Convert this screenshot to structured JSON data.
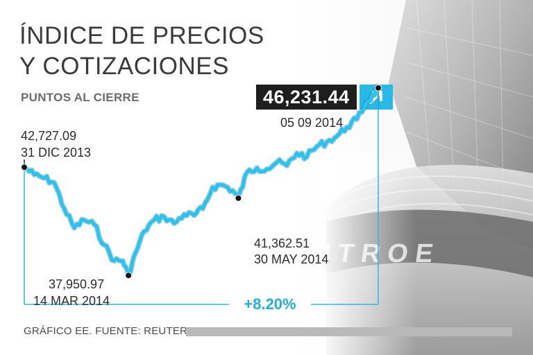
{
  "header": {
    "title_line1": "ÍNDICE DE PRECIOS",
    "title_line2": "Y COTIZACIONES",
    "subtitle": "PUNTOS AL CIERRE"
  },
  "callouts": {
    "last_value": "46,231.44",
    "last_date": "05 09 2014",
    "start_value": "42,727.09",
    "start_date": "31 DIC 2013",
    "min_value": "37,950.97",
    "min_date": "14 MAR 2014",
    "mid_value": "41,362.51",
    "mid_date": "30 MAY 2014",
    "change": "+8.20%"
  },
  "footer": {
    "source": "GRÁFICO EE. FUENTE: REUTERS."
  },
  "icons": {
    "trend": "arrow-up-right-icon"
  },
  "colors": {
    "line": "#28c3ee",
    "line_outline": "#1d6f8a",
    "accent": "#28b9e6",
    "dark_box": "#1e1e1e"
  },
  "chart_data": {
    "type": "line",
    "title": "ÍNDICE DE PRECIOS Y COTIZACIONES",
    "subtitle": "PUNTOS AL CIERRE",
    "xlabel": "",
    "ylabel": "",
    "grid": false,
    "ylim": [
      37500,
      46500
    ],
    "series": [
      {
        "points": [
          [
            "2013-12-31",
            42727.09
          ],
          [
            "2014-01-07",
            42400
          ],
          [
            "2014-01-14",
            42250
          ],
          [
            "2014-01-21",
            42050
          ],
          [
            "2014-01-28",
            40900
          ],
          [
            "2014-02-04",
            40050
          ],
          [
            "2014-02-11",
            40400
          ],
          [
            "2014-02-18",
            40200
          ],
          [
            "2014-02-25",
            39300
          ],
          [
            "2014-03-04",
            38600
          ],
          [
            "2014-03-10",
            38600
          ],
          [
            "2014-03-14",
            37950.97
          ],
          [
            "2014-03-19",
            38950
          ],
          [
            "2014-03-25",
            39900
          ],
          [
            "2014-04-01",
            40400
          ],
          [
            "2014-04-08",
            40550
          ],
          [
            "2014-04-15",
            40250
          ],
          [
            "2014-04-22",
            40650
          ],
          [
            "2014-04-29",
            40600
          ],
          [
            "2014-05-05",
            40900
          ],
          [
            "2014-05-12",
            41850
          ],
          [
            "2014-05-19",
            41950
          ],
          [
            "2014-05-26",
            41700
          ],
          [
            "2014-05-30",
            41362.51
          ],
          [
            "2014-06-05",
            42500
          ],
          [
            "2014-06-12",
            42700
          ],
          [
            "2014-06-19",
            42650
          ],
          [
            "2014-06-26",
            42950
          ],
          [
            "2014-07-03",
            42800
          ],
          [
            "2014-07-10",
            43350
          ],
          [
            "2014-07-17",
            43200
          ],
          [
            "2014-07-24",
            43650
          ],
          [
            "2014-07-31",
            43850
          ],
          [
            "2014-08-07",
            44100
          ],
          [
            "2014-08-14",
            44500
          ],
          [
            "2014-08-21",
            44850
          ],
          [
            "2014-08-28",
            45600
          ],
          [
            "2014-09-02",
            45950
          ],
          [
            "2014-09-05",
            46231.44
          ]
        ]
      }
    ],
    "annotations": [
      {
        "x": "2013-12-31",
        "y": 42727.09,
        "label": "42,727.09 / 31 DIC 2013"
      },
      {
        "x": "2014-03-14",
        "y": 37950.97,
        "label": "37,950.97 / 14 MAR 2014"
      },
      {
        "x": "2014-05-30",
        "y": 41362.51,
        "label": "41,362.51 / 30 MAY 2014"
      },
      {
        "x": "2014-09-05",
        "y": 46231.44,
        "label": "46,231.44 / 05 09 2014"
      }
    ],
    "change_label": "+8.20%"
  }
}
